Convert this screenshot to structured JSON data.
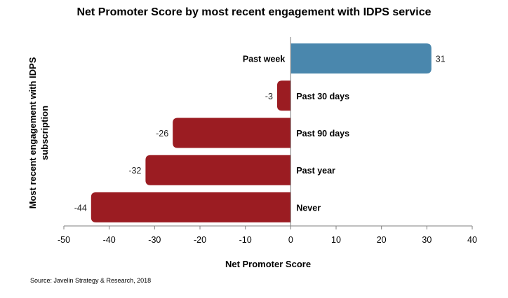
{
  "chart_data": {
    "type": "bar",
    "orientation": "horizontal",
    "title": "Net Promoter Score by most recent engagement with IDPS service",
    "xlabel": "Net Promoter Score",
    "ylabel": "Most recent engagement with IDPS subscription",
    "categories": [
      "Past week",
      "Past 30 days",
      "Past 90 days",
      "Past year",
      "Never"
    ],
    "values": [
      31,
      -3,
      -26,
      -32,
      -44
    ],
    "value_labels": [
      "31",
      "-3",
      "-26",
      "-32",
      "-44"
    ],
    "xlim": [
      -50,
      40
    ],
    "xticks": [
      -50,
      -40,
      -30,
      -20,
      -10,
      0,
      10,
      20,
      30,
      40
    ],
    "grid": false,
    "legend": "none",
    "colors": {
      "positive": "#4a87ad",
      "negative": "#9b1c22"
    },
    "source": "Source: Javelin Strategy & Research, 2018"
  }
}
